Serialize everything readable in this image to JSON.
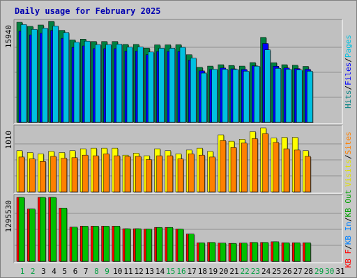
{
  "chart_data": {
    "type": "bar",
    "title": "Daily usage for February 2025",
    "days": [
      "1",
      "2",
      "3",
      "4",
      "5",
      "6",
      "7",
      "8",
      "9",
      "10",
      "11",
      "12",
      "13",
      "14",
      "15",
      "16",
      "17",
      "18",
      "19",
      "20",
      "21",
      "22",
      "23",
      "24",
      "25",
      "26",
      "27",
      "28",
      "29",
      "30",
      "31"
    ],
    "weekend_days": [
      "1",
      "2",
      "8",
      "9",
      "15",
      "16",
      "22",
      "23",
      "29",
      "30"
    ],
    "panels": [
      {
        "id": "hits-files-pages",
        "ymax_label": "15940",
        "ymax": 15940,
        "legend": [
          {
            "text": "Hits",
            "color": "#008080"
          },
          {
            "text": "/",
            "color": "#000000"
          },
          {
            "text": "Files",
            "color": "#0000ff"
          },
          {
            "text": "/",
            "color": "#000000"
          },
          {
            "text": "Pages",
            "color": "#00c0e0"
          }
        ],
        "series": [
          {
            "name": "Hits",
            "color": "#008040",
            "values": [
              15940,
              15290,
              15500,
              16090,
              14650,
              13120,
              13250,
              12870,
              12870,
              12870,
              12410,
              12410,
              11830,
              12340,
              12340,
              12360,
              10770,
              8760,
              8960,
              9180,
              9060,
              8960,
              9520,
              13530,
              9500,
              9180,
              9090,
              8910
            ]
          },
          {
            "name": "Files",
            "color": "#0000ff",
            "values": [
              14510,
              13930,
              14180,
              14650,
              13380,
              11950,
              12170,
              11740,
              11740,
              11740,
              11340,
              11340,
              10770,
              11290,
              11290,
              11290,
              9900,
              8200,
              8420,
              8650,
              8520,
              8420,
              9000,
              12560,
              8940,
              8660,
              8560,
              8440
            ]
          },
          {
            "name": "Pages",
            "color": "#00c0e0",
            "values": [
              15570,
              14810,
              15000,
              15340,
              14300,
              12760,
              12930,
              12390,
              12390,
              12440,
              11970,
              12000,
              11200,
              11800,
              11800,
              11950,
              10240,
              7850,
              8450,
              8450,
              8420,
              8140,
              8950,
              11550,
              8600,
              8450,
              8340,
              8140
            ]
          }
        ]
      },
      {
        "id": "visits-sites",
        "ymax_label": "1010",
        "ymax": 1010,
        "legend": [
          {
            "text": "Visits",
            "color": "#e0e000"
          },
          {
            "text": "/",
            "color": "#000000"
          },
          {
            "text": "Sites",
            "color": "#ff8000"
          }
        ],
        "series": [
          {
            "name": "Visits",
            "color": "#ffff00",
            "values": [
              650,
              620,
              600,
              640,
              620,
              650,
              680,
              690,
              690,
              690,
              580,
              610,
              570,
              680,
              650,
              600,
              660,
              690,
              640,
              900,
              800,
              830,
              950,
              1010,
              850,
              860,
              860,
              650
            ]
          },
          {
            "name": "Sites",
            "color": "#ff8000",
            "values": [
              550,
              520,
              480,
              560,
              530,
              540,
              580,
              570,
              600,
              570,
              560,
              560,
              510,
              570,
              570,
              520,
              600,
              580,
              550,
              810,
              700,
              770,
              840,
              920,
              780,
              680,
              660,
              560
            ]
          }
        ]
      },
      {
        "id": "kbytes",
        "ymax_label": "1295530",
        "ymax": 1295530,
        "legend": [
          {
            "text": "KB F",
            "color": "#ff0000"
          },
          {
            "text": "/",
            "color": "#000000"
          },
          {
            "text": "KB In",
            "color": "#0080ff"
          },
          {
            "text": "/",
            "color": "#000000"
          },
          {
            "text": "KB Out",
            "color": "#00a000"
          }
        ],
        "series": [
          {
            "name": "KB F",
            "color": "#ff0000",
            "values": [
              1295530,
              1060380,
              1295530,
              1295530,
              1080230,
              693140,
              712900,
              712900,
              712900,
              712900,
              660900,
              660900,
              654300,
              687200,
              687200,
              654300,
              552950,
              375000,
              383000,
              370000,
              364000,
              370000,
              383000,
              383000,
              396000,
              376000,
              376000,
              376000
            ]
          },
          {
            "name": "KB Out",
            "color": "#00c000",
            "values": [
              1295530,
              1060380,
              1295530,
              1295530,
              1080230,
              693140,
              712900,
              712900,
              712900,
              712900,
              660900,
              660900,
              654300,
              687200,
              687200,
              654300,
              552950,
              375000,
              383000,
              370000,
              364000,
              370000,
              383000,
              383000,
              396000,
              376000,
              376000,
              376000
            ]
          }
        ]
      }
    ]
  }
}
